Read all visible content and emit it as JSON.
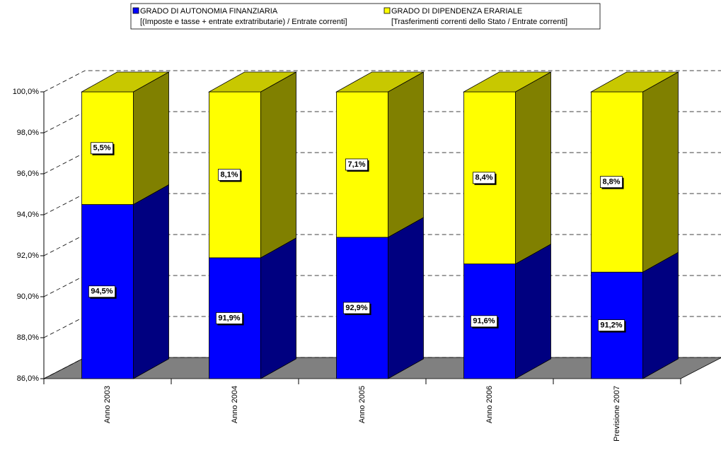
{
  "chart_data": {
    "type": "bar3d_stacked",
    "categories": [
      "Anno 2003",
      "Anno 2004",
      "Anno 2005",
      "Anno 2006",
      "Previsione 2007"
    ],
    "series": [
      {
        "name": "GRADO DI AUTONOMIA FINANZIARIA",
        "description": "[(Imposte e tasse + entrate extratributarie) / Entrate correnti]",
        "color": "#0000ff",
        "side_color": "#000080",
        "values": [
          94.5,
          91.9,
          92.9,
          91.6,
          91.2
        ],
        "value_labels": [
          "94,5%",
          "91,9%",
          "92,9%",
          "91,6%",
          "91,2%"
        ]
      },
      {
        "name": "GRADO DI DIPENDENZA ERARIALE",
        "description": "[Trasferimenti correnti dello Stato / Entrate correnti]",
        "color": "#ffff00",
        "side_color": "#808000",
        "values": [
          5.5,
          8.1,
          7.1,
          8.4,
          8.8
        ],
        "value_labels": [
          "5,5%",
          "8,1%",
          "7,1%",
          "8,4%",
          "8,8%"
        ]
      }
    ],
    "ylim": [
      86,
      100
    ],
    "yticks": [
      {
        "value": 86,
        "label": "86,0%"
      },
      {
        "value": 88,
        "label": "88,0%"
      },
      {
        "value": 90,
        "label": "90,0%"
      },
      {
        "value": 92,
        "label": "92,0%"
      },
      {
        "value": 94,
        "label": "94,0%"
      },
      {
        "value": 96,
        "label": "96,0%"
      },
      {
        "value": 98,
        "label": "98,0%"
      },
      {
        "value": 100,
        "label": "100,0%"
      }
    ],
    "grid": true
  }
}
